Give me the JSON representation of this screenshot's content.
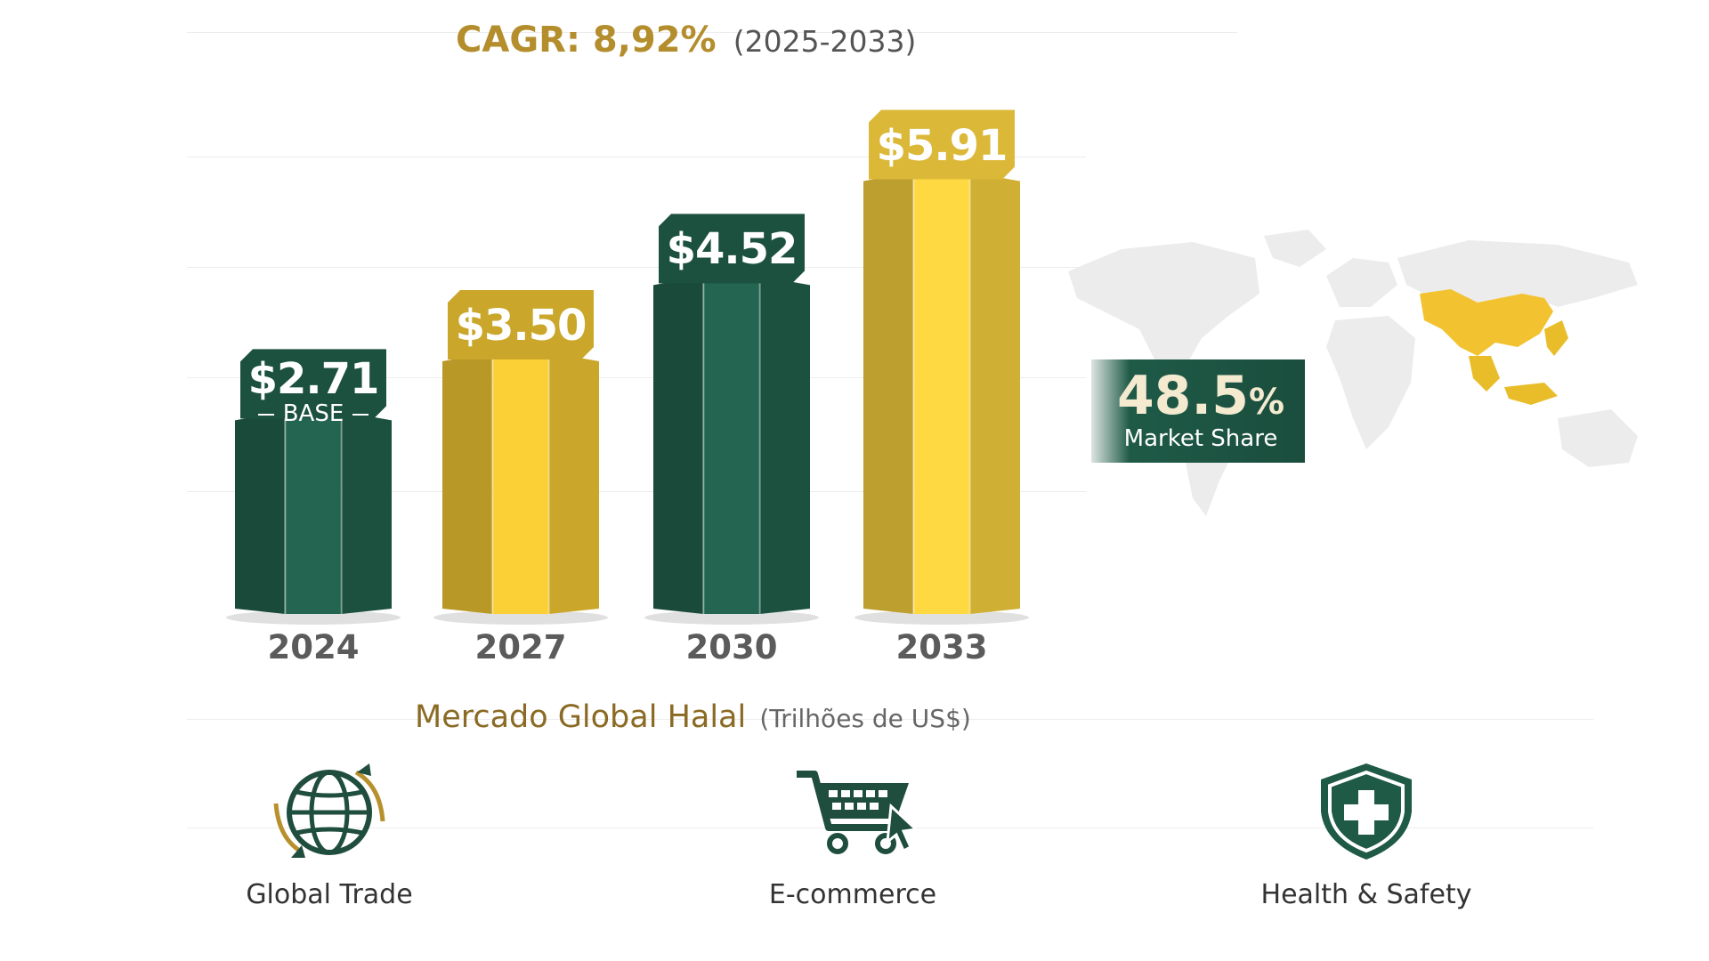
{
  "cagr": {
    "label": "CAGR: 8,92%",
    "period": "(2025-2033)"
  },
  "chart_data": {
    "type": "bar",
    "categories": [
      "2024",
      "2027",
      "2030",
      "2033"
    ],
    "values": [
      2.71,
      3.5,
      4.52,
      5.91
    ],
    "value_labels": [
      "$2.71",
      "$3.50",
      "$4.52",
      "$5.91"
    ],
    "base_note": "BASE",
    "xlabel": "Mercado Global Halal",
    "xlabel_unit": "(Trilhões de US$)",
    "bar_colors": [
      "#1f5a47",
      "#e0b930",
      "#1f5a47",
      "#e6c23a"
    ],
    "grid": true
  },
  "market_share": {
    "value": "48.5",
    "unit": "%",
    "label": "Market Share"
  },
  "features": [
    {
      "label": "Global Trade",
      "icon": "globe-arrows-icon"
    },
    {
      "label": "E-commerce",
      "icon": "shopping-cart-icon"
    },
    {
      "label": "Health & Safety",
      "icon": "shield-plus-icon"
    }
  ],
  "colors": {
    "green": "#1f5a47",
    "gold": "#e0b930",
    "title_gold": "#b48e2d",
    "map_highlight": "#f2c230"
  }
}
